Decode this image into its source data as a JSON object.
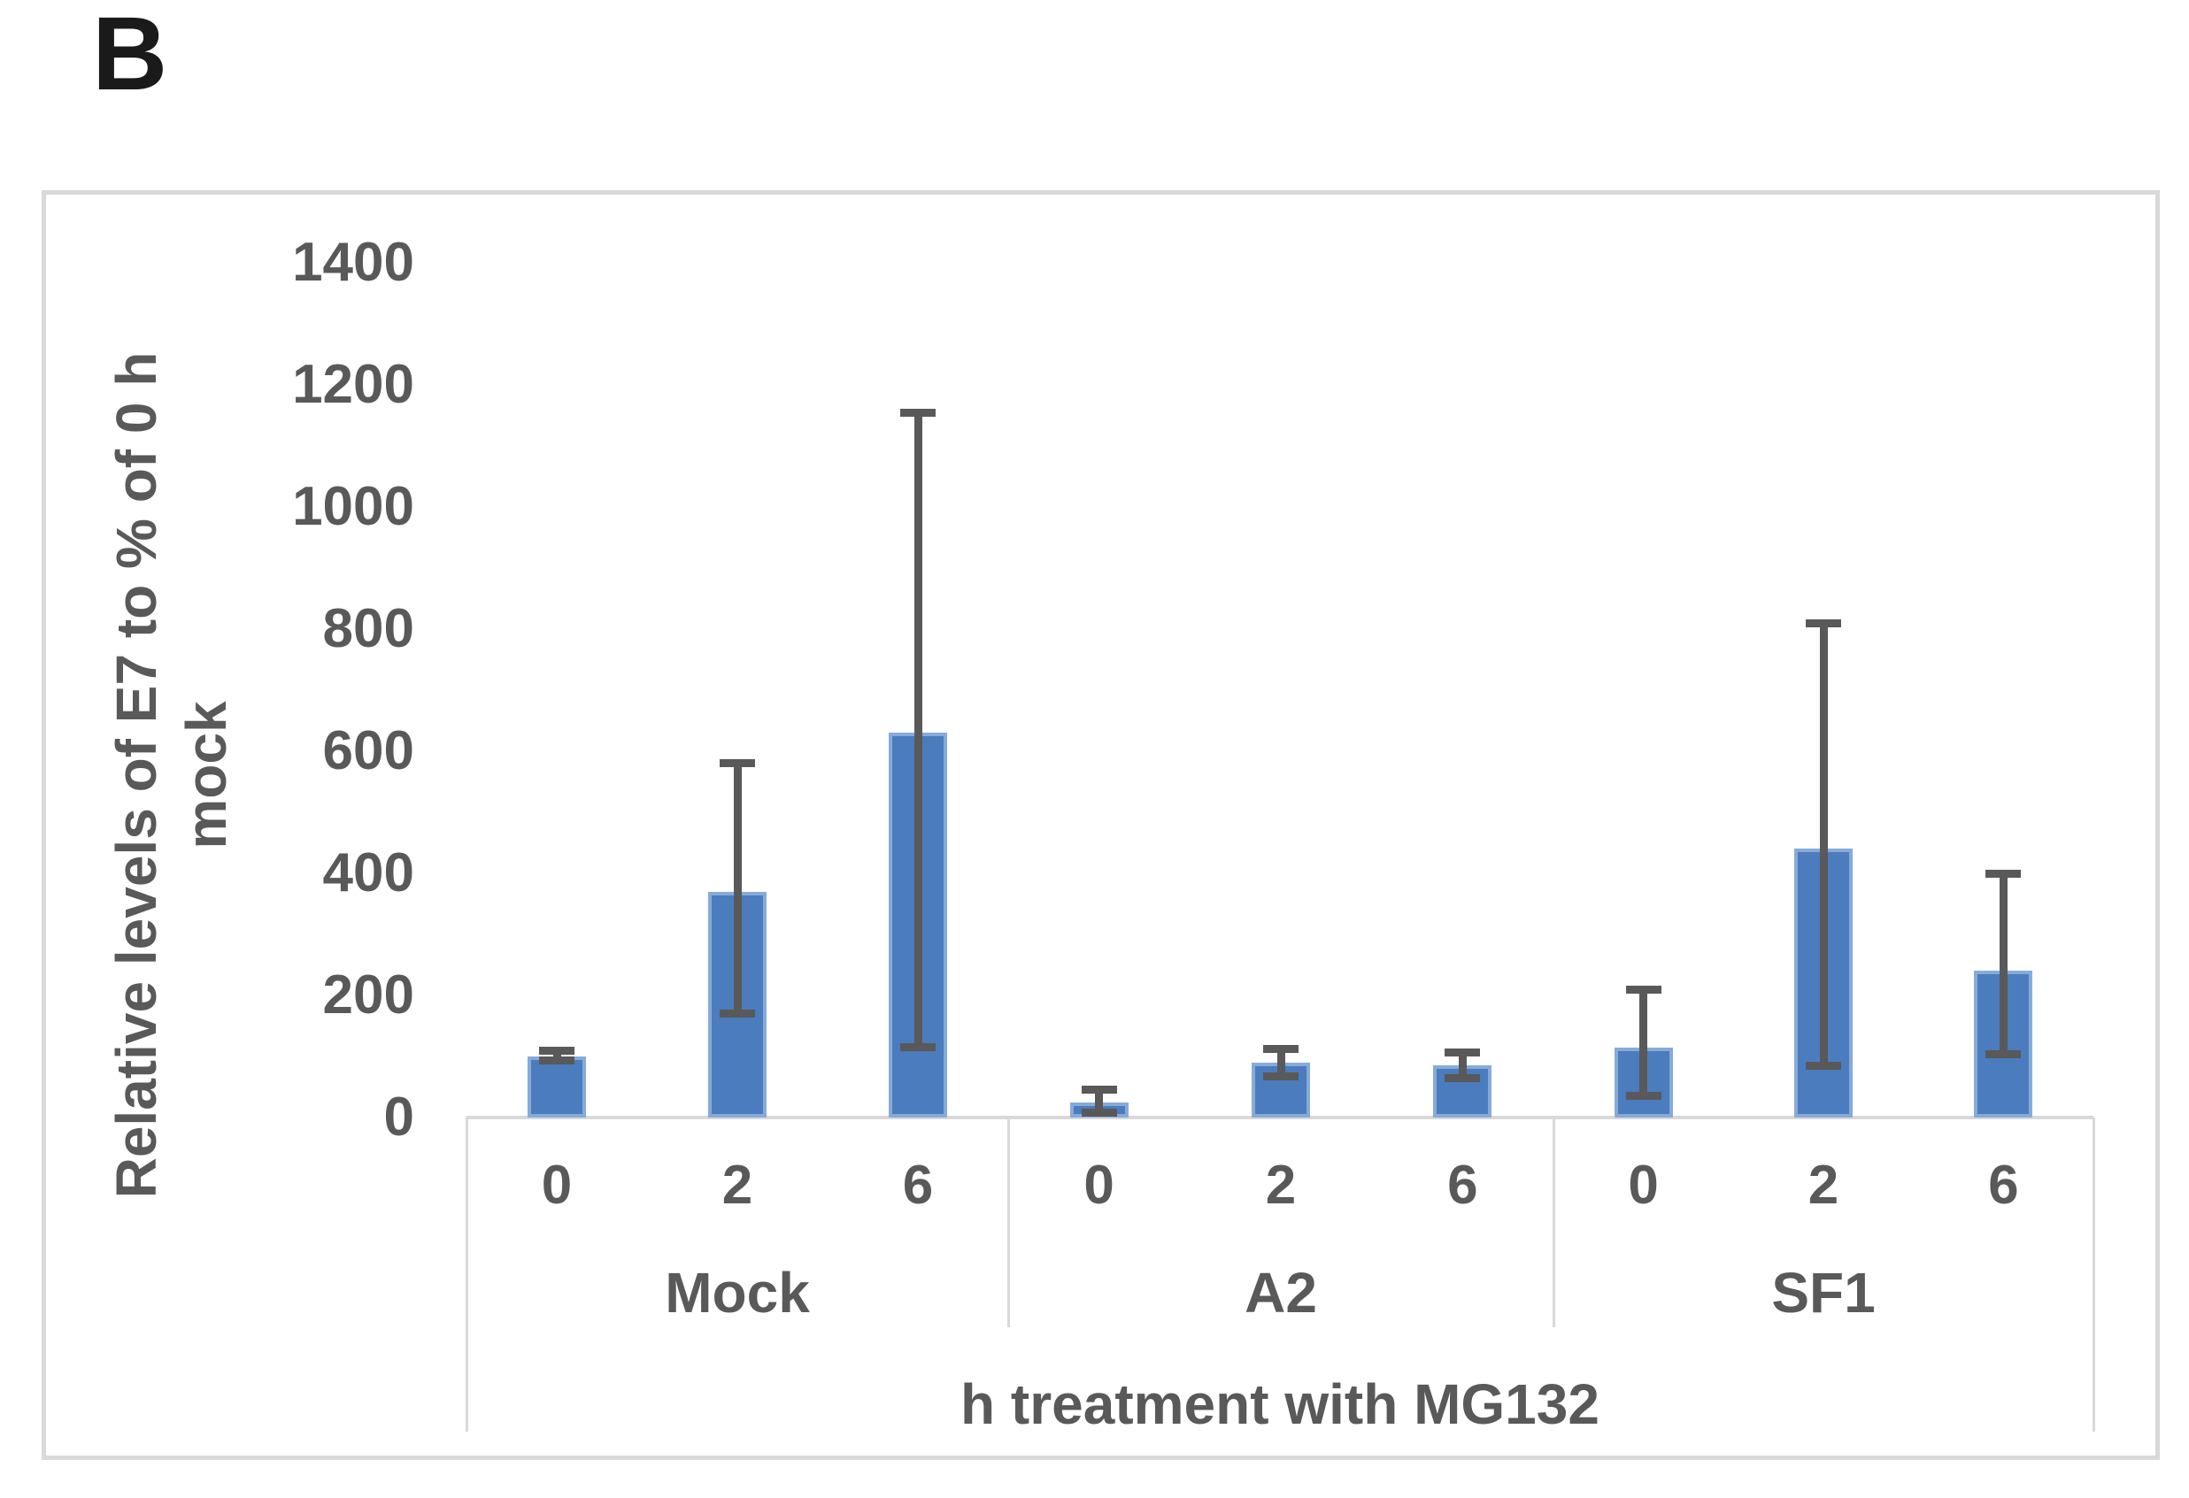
{
  "panel_label": "B",
  "colors": {
    "bar_fill": "#4a7cbe",
    "bar_edge": "#86abd9",
    "error_bar": "#595959",
    "axis_line": "#d9d9d9",
    "axis_text": "#595959",
    "panel_label_color": "#1a1a1a"
  },
  "chart_data": {
    "type": "bar",
    "title": "",
    "ylabel": "Relative levels of E7 to % of 0 h mock",
    "ylabel_lines": [
      "Relative levels of E7 to % of 0 h",
      "mock"
    ],
    "xlabel": "h treatment with MG132",
    "ylim": [
      0,
      1400
    ],
    "yticks": [
      0,
      200,
      400,
      600,
      800,
      1000,
      1200,
      1400
    ],
    "grid": false,
    "legend": "none",
    "error_bars": true,
    "categories_note": "hours of MG132 treatment per cell line group",
    "groups": [
      {
        "label": "Mock",
        "points": [
          {
            "x": "0",
            "value": 100,
            "err_lo": 93,
            "err_hi": 110
          },
          {
            "x": "2",
            "value": 370,
            "err_lo": 170,
            "err_hi": 580
          },
          {
            "x": "6",
            "value": 630,
            "err_lo": 115,
            "err_hi": 1155
          }
        ]
      },
      {
        "label": "A2",
        "points": [
          {
            "x": "0",
            "value": 25,
            "err_lo": 8,
            "err_hi": 45
          },
          {
            "x": "2",
            "value": 90,
            "err_lo": 68,
            "err_hi": 112
          },
          {
            "x": "6",
            "value": 85,
            "err_lo": 64,
            "err_hi": 106
          }
        ]
      },
      {
        "label": "SF1",
        "points": [
          {
            "x": "0",
            "value": 115,
            "err_lo": 35,
            "err_hi": 210
          },
          {
            "x": "2",
            "value": 440,
            "err_lo": 85,
            "err_hi": 810
          },
          {
            "x": "6",
            "value": 240,
            "err_lo": 103,
            "err_hi": 400
          }
        ]
      }
    ]
  }
}
